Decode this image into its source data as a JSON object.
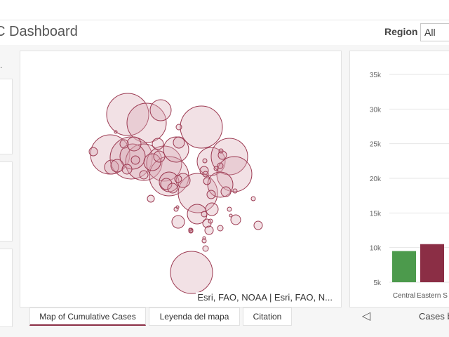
{
  "header": {
    "title": "C Dashboard",
    "region_label": "Region",
    "region_value": "All"
  },
  "left_panel": {
    "tab_mark": "."
  },
  "map": {
    "attribution": "Esri, FAO, NOAA | Esri, FAO, N...",
    "bubble_fill": "#d9a8b5",
    "bubble_stroke": "#9c3a52"
  },
  "tabs": [
    {
      "label": "Map of Cumulative Cases",
      "active": true
    },
    {
      "label": "Leyenda del mapa",
      "active": false
    },
    {
      "label": "Citation",
      "active": false
    }
  ],
  "chart_footer": {
    "prev_icon": "chevron-left-icon",
    "label": "Cases b"
  },
  "chart_data": {
    "type": "bar",
    "categories": [
      "Central",
      "Eastern S"
    ],
    "values": [
      9500,
      10500
    ],
    "colors": [
      "#4c9a4c",
      "#8b2e45"
    ],
    "yticks": [
      "5k",
      "10k",
      "15k",
      "20k",
      "25k",
      "30k",
      "35k"
    ],
    "ylim": [
      5000,
      35000
    ],
    "grid": true
  }
}
